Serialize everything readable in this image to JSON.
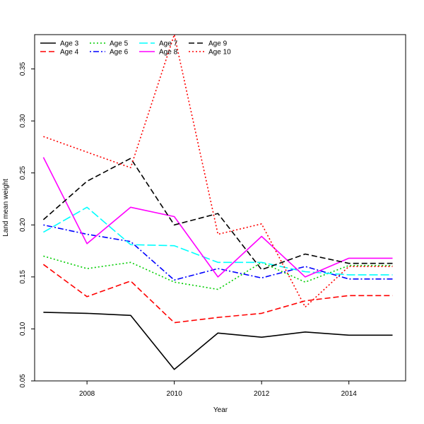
{
  "chart_data": {
    "type": "line",
    "title": "",
    "xlabel": "Year",
    "ylabel": "Land mean weight",
    "xlim": [
      2006.8,
      2015.3
    ],
    "ylim": [
      0.05,
      0.383
    ],
    "x_ticks": [
      2008,
      2010,
      2012,
      2014
    ],
    "y_ticks": [
      0.05,
      0.1,
      0.15,
      0.2,
      0.25,
      0.3,
      0.35
    ],
    "grid": false,
    "legend_position": "top-left",
    "x": [
      2007,
      2008,
      2009,
      2010,
      2011,
      2012,
      2013,
      2014,
      2015
    ],
    "series": [
      {
        "name": "Age 3",
        "color": "#000000",
        "dash": "solid",
        "values": [
          0.116,
          0.115,
          0.113,
          0.061,
          0.096,
          0.092,
          0.097,
          0.094,
          0.094
        ]
      },
      {
        "name": "Age 4",
        "color": "#ff0000",
        "dash": "dashed",
        "values": [
          0.162,
          0.131,
          0.146,
          0.106,
          0.111,
          0.115,
          0.127,
          0.132,
          0.132
        ]
      },
      {
        "name": "Age 5",
        "color": "#00cd00",
        "dash": "dotted",
        "values": [
          0.17,
          0.158,
          0.164,
          0.145,
          0.138,
          0.164,
          0.145,
          0.161,
          0.161
        ]
      },
      {
        "name": "Age 6",
        "color": "#0000ff",
        "dash": "dotdash",
        "values": [
          0.2,
          0.191,
          0.184,
          0.147,
          0.158,
          0.149,
          0.16,
          0.148,
          0.148
        ]
      },
      {
        "name": "Age 7",
        "color": "#00ffff",
        "dash": "longdash",
        "values": [
          0.193,
          0.217,
          0.181,
          0.18,
          0.164,
          0.164,
          0.155,
          0.152,
          0.152
        ]
      },
      {
        "name": "Age 8",
        "color": "#ff00ff",
        "dash": "solid",
        "values": [
          0.265,
          0.182,
          0.217,
          0.208,
          0.15,
          0.189,
          0.15,
          0.168,
          0.168
        ]
      },
      {
        "name": "Age 9",
        "color": "#000000",
        "dash": "dashed",
        "values": [
          0.205,
          0.242,
          0.264,
          0.2,
          0.211,
          0.157,
          0.172,
          0.163,
          0.163
        ]
      },
      {
        "name": "Age 10",
        "color": "#ff0000",
        "dash": "dotted",
        "values": [
          0.285,
          0.27,
          0.255,
          0.383,
          0.191,
          0.201,
          0.121,
          0.16,
          0.16
        ]
      }
    ]
  }
}
